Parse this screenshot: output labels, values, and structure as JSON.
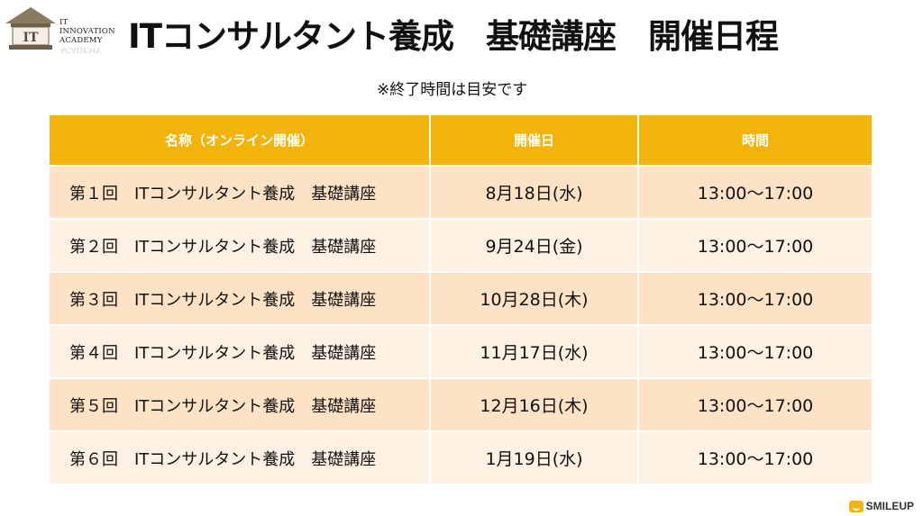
{
  "logo": {
    "badge": "IT",
    "lines": [
      "IT",
      "INNOVATION",
      "ACADEMY"
    ],
    "reflection": "ACADEMY"
  },
  "title": "ITコンサルタント養成　基礎講座　開催日程",
  "note": "※終了時間は目安です",
  "table": {
    "headers": [
      "名称（オンライン開催）",
      "開催日",
      "時間"
    ],
    "rows": [
      {
        "name": "第１回　ITコンサルタント養成　基礎講座",
        "date": "8月18日(水)",
        "time": "13:00〜17:00"
      },
      {
        "name": "第２回　ITコンサルタント養成　基礎講座",
        "date": "9月24日(金)",
        "time": "13:00〜17:00"
      },
      {
        "name": "第３回　ITコンサルタント養成　基礎講座",
        "date": "10月28日(木)",
        "time": "13:00〜17:00"
      },
      {
        "name": "第４回　ITコンサルタント養成　基礎講座",
        "date": "11月17日(水)",
        "time": "13:00〜17:00"
      },
      {
        "name": "第５回　ITコンサルタント養成　基礎講座",
        "date": "12月16日(木)",
        "time": "13:00〜17:00"
      },
      {
        "name": "第６回　ITコンサルタント養成　基礎講座",
        "date": "1月19日(水)",
        "time": "13:00〜17:00"
      }
    ]
  },
  "footer": {
    "brand": "SMILEUP"
  },
  "colors": {
    "header_bg": "#f2b40a",
    "row_odd": "#fde2c6",
    "row_even": "#fdf1e4"
  }
}
